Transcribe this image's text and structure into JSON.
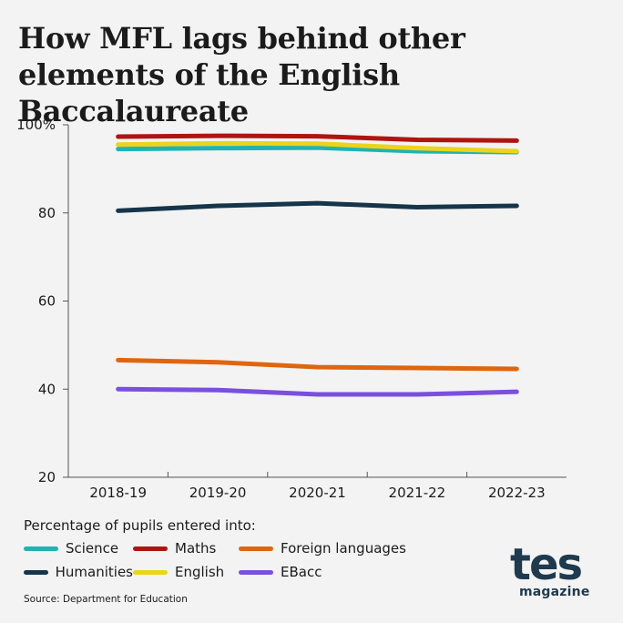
{
  "title": "How MFL lags behind other elements of the English Baccalaureate",
  "legend_title": "Percentage of pupils entered into:",
  "source": "Source: Department for Education",
  "logo": {
    "main": "tes",
    "sub": "magazine"
  },
  "chart_data": {
    "type": "line",
    "categories": [
      "2018-19",
      "2019-20",
      "2020-21",
      "2021-22",
      "2022-23"
    ],
    "ylim": [
      20,
      100
    ],
    "yticks": [
      20,
      40,
      60,
      80,
      100
    ],
    "ytick_labels": [
      "20",
      "40",
      "60",
      "80",
      "100%"
    ],
    "grid": false,
    "legend_placement": "bottom",
    "series": [
      {
        "name": "Science",
        "color": "#1fb3b3",
        "values": [
          94.5,
          94.7,
          94.8,
          94.0,
          93.8
        ]
      },
      {
        "name": "Maths",
        "color": "#b0140f",
        "values": [
          97.3,
          97.5,
          97.4,
          96.6,
          96.4
        ]
      },
      {
        "name": "Foreign languages",
        "color": "#e0650f",
        "values": [
          46.6,
          46.1,
          45.0,
          44.8,
          44.6
        ]
      },
      {
        "name": "Humanities",
        "color": "#16344a",
        "values": [
          80.5,
          81.6,
          82.2,
          81.3,
          81.6
        ]
      },
      {
        "name": "English",
        "color": "#ecd31c",
        "values": [
          95.5,
          95.8,
          95.7,
          94.7,
          94.0
        ]
      },
      {
        "name": "EBacc",
        "color": "#7a4fe0",
        "values": [
          40.0,
          39.8,
          38.8,
          38.8,
          39.4
        ]
      }
    ]
  }
}
